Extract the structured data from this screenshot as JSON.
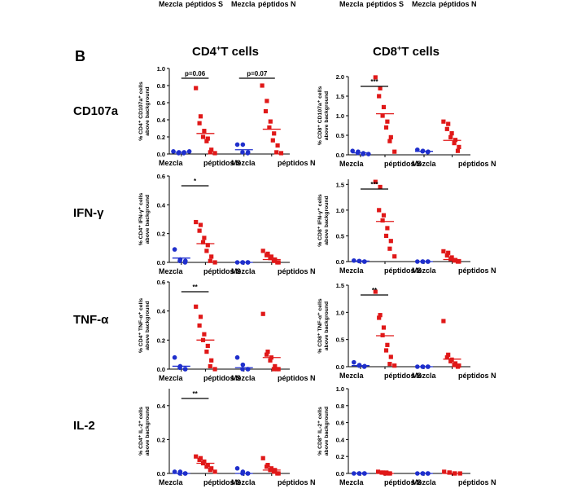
{
  "top_remnant": {
    "left": [
      "Mezcla",
      "péptidos S",
      "Mezcla",
      "péptidos N"
    ],
    "right": [
      "Mezcla",
      "péptidos S",
      "Mezcla",
      "péptidos N"
    ]
  },
  "panel_label": "B",
  "col_titles": {
    "cd4_main": "CD4",
    "cd4_sup": "+",
    "cd4_rest": "T cells",
    "cd8_main": "CD8",
    "cd8_sup": "+",
    "cd8_rest": "T cells"
  },
  "row_labels": [
    "CD107a",
    "IFN-γ",
    "TNF-α",
    "IL-2"
  ],
  "colors": {
    "blue": "#1f2fcc",
    "red": "#e01818"
  },
  "chart_data": [
    {
      "id": "cd4-cd107a",
      "type": "scatter",
      "ylabel": [
        "% CD4⁺ CD107a⁺ cells",
        "above background"
      ],
      "ylim": [
        0,
        1.0
      ],
      "yticks": [
        "0.0",
        "0.2",
        "0.4",
        "0.6",
        "0.8",
        "1.0"
      ],
      "categories": [
        "Mezcla",
        "péptidos S",
        "Mezcla",
        "péptidos N"
      ],
      "points": [
        {
          "g": 0,
          "c": "blue",
          "s": "circle",
          "v": [
            0.03,
            0.02,
            0.01,
            0.02,
            0.01,
            0.03
          ]
        },
        {
          "g": 1,
          "c": "red",
          "s": "square",
          "v": [
            0.77,
            0.44,
            0.36,
            0.27,
            0.2,
            0.18,
            0.15,
            0.05,
            0.02,
            0.01
          ]
        },
        {
          "g": 2,
          "c": "blue",
          "s": "circle",
          "v": [
            0.11,
            0.11,
            0.02,
            0.02,
            0.01
          ]
        },
        {
          "g": 3,
          "c": "red",
          "s": "square",
          "v": [
            0.8,
            0.62,
            0.5,
            0.38,
            0.31,
            0.24,
            0.16,
            0.1,
            0.02,
            0.01
          ]
        }
      ],
      "means": [
        0.02,
        0.24,
        0.05,
        0.29
      ],
      "sig": {
        "text": "p=0.06",
        "groups": [
          0,
          1
        ]
      },
      "sig2": {
        "text": "p=0.07",
        "groups": [
          2,
          3
        ]
      }
    },
    {
      "id": "cd8-cd107a",
      "type": "scatter",
      "ylabel": [
        "% CD8⁺ CD107a⁺ cells",
        "above background"
      ],
      "ylim": [
        0,
        2.0
      ],
      "yticks": [
        "0.0",
        "0.5",
        "1.0",
        "1.5",
        "2.0"
      ],
      "categories": [
        "Mezcla",
        "péptidos S",
        "Mezcla",
        "péptidos N"
      ],
      "points": [
        {
          "g": 0,
          "c": "blue",
          "s": "circle",
          "v": [
            0.1,
            0.08,
            0.05,
            0.04,
            0.02,
            0.02
          ]
        },
        {
          "g": 1,
          "c": "red",
          "s": "square",
          "v": [
            1.98,
            1.7,
            1.5,
            1.22,
            1.0,
            0.85,
            0.7,
            0.45,
            0.35,
            0.08
          ]
        },
        {
          "g": 2,
          "c": "blue",
          "s": "circle",
          "v": [
            0.13,
            0.1,
            0.09,
            0.08,
            0.07
          ]
        },
        {
          "g": 3,
          "c": "red",
          "s": "square",
          "v": [
            0.85,
            0.79,
            0.66,
            0.55,
            0.45,
            0.38,
            0.3,
            0.2,
            0.1
          ]
        }
      ],
      "means": [
        0.05,
        1.05,
        0.09,
        0.37
      ],
      "sig": {
        "text": "***",
        "groups": [
          0,
          1
        ]
      }
    },
    {
      "id": "cd4-ifng",
      "type": "scatter",
      "ylabel": [
        "% CD4⁺ IFN-γ⁺ cells",
        "above background"
      ],
      "ylim": [
        0,
        0.6
      ],
      "yticks": [
        "0.0",
        "0.2",
        "0.4",
        "0.6"
      ],
      "categories": [
        "Mezcla",
        "péptidos S",
        "Mezcla",
        "péptidos N"
      ],
      "points": [
        {
          "g": 0,
          "c": "blue",
          "s": "circle",
          "v": [
            0.09,
            0.02,
            0.01,
            0.01,
            0.0
          ]
        },
        {
          "g": 1,
          "c": "red",
          "s": "square",
          "v": [
            0.28,
            0.26,
            0.22,
            0.17,
            0.14,
            0.12,
            0.08,
            0.04,
            0.01,
            0.0
          ]
        },
        {
          "g": 2,
          "c": "blue",
          "s": "circle",
          "v": [
            0.0,
            0.0,
            0.0,
            0.0,
            0.0
          ]
        },
        {
          "g": 3,
          "c": "red",
          "s": "square",
          "v": [
            0.08,
            0.06,
            0.05,
            0.04,
            0.03,
            0.02,
            0.01,
            0.0,
            0.0
          ]
        }
      ],
      "means": [
        0.03,
        0.13,
        0.0,
        0.02
      ],
      "sig": {
        "text": "*",
        "groups": [
          0,
          1
        ]
      }
    },
    {
      "id": "cd8-ifng",
      "type": "scatter",
      "ylabel": [
        "% CD8⁺ IFN-γ⁺ cells",
        "above background"
      ],
      "ylim": [
        0,
        1.6
      ],
      "yticks": [
        "0.0",
        "0.5",
        "1.0",
        "1.5"
      ],
      "categories": [
        "Mezcla",
        "péptidos S",
        "Mezcla",
        "péptidos N"
      ],
      "points": [
        {
          "g": 0,
          "c": "blue",
          "s": "circle",
          "v": [
            0.02,
            0.01,
            0.01,
            0.0,
            0.0
          ]
        },
        {
          "g": 1,
          "c": "red",
          "s": "square",
          "v": [
            1.55,
            1.45,
            1.0,
            0.9,
            0.8,
            0.65,
            0.5,
            0.4,
            0.25,
            0.1
          ]
        },
        {
          "g": 2,
          "c": "blue",
          "s": "circle",
          "v": [
            0.0,
            0.0,
            0.0,
            0.0,
            0.0
          ]
        },
        {
          "g": 3,
          "c": "red",
          "s": "square",
          "v": [
            0.2,
            0.17,
            0.12,
            0.08,
            0.05,
            0.03,
            0.02,
            0.0,
            0.0
          ]
        }
      ],
      "means": [
        0.01,
        0.78,
        0.0,
        0.04
      ],
      "sig": {
        "text": "***",
        "groups": [
          0,
          1
        ]
      }
    },
    {
      "id": "cd4-tnfa",
      "type": "scatter",
      "ylabel": [
        "% CD4⁺ TNF-α⁺ cells",
        "above background"
      ],
      "ylim": [
        0,
        0.6
      ],
      "yticks": [
        "0.0",
        "0.2",
        "0.4",
        "0.6"
      ],
      "categories": [
        "Mezcla",
        "péptidos S",
        "Mezcla",
        "péptidos N"
      ],
      "points": [
        {
          "g": 0,
          "c": "blue",
          "s": "circle",
          "v": [
            0.08,
            0.02,
            0.01,
            0.0,
            0.0
          ]
        },
        {
          "g": 1,
          "c": "red",
          "s": "square",
          "v": [
            0.43,
            0.36,
            0.3,
            0.24,
            0.2,
            0.16,
            0.12,
            0.06,
            0.02,
            0.0
          ]
        },
        {
          "g": 2,
          "c": "blue",
          "s": "circle",
          "v": [
            0.08,
            0.03,
            0.0,
            0.0,
            0.0
          ]
        },
        {
          "g": 3,
          "c": "red",
          "s": "square",
          "v": [
            0.38,
            0.12,
            0.1,
            0.08,
            0.06,
            0.02,
            0.0,
            0.0,
            0.0
          ]
        }
      ],
      "means": [
        0.02,
        0.2,
        0.01,
        0.08
      ],
      "sig": {
        "text": "**",
        "groups": [
          0,
          1
        ]
      }
    },
    {
      "id": "cd8-tnfa",
      "type": "scatter",
      "ylabel": [
        "% CD8⁺ TNF-α⁺ cells",
        "above background"
      ],
      "ylim": [
        0,
        1.5
      ],
      "yticks": [
        "0.0",
        "0.5",
        "1.0",
        "1.5"
      ],
      "categories": [
        "Mezcla",
        "péptidos S",
        "Mezcla",
        "péptidos N"
      ],
      "points": [
        {
          "g": 0,
          "c": "blue",
          "s": "circle",
          "v": [
            0.08,
            0.03,
            0.02,
            0.01,
            0.0
          ]
        },
        {
          "g": 1,
          "c": "red",
          "s": "square",
          "v": [
            1.38,
            0.95,
            0.9,
            0.72,
            0.58,
            0.4,
            0.3,
            0.18,
            0.05,
            0.02
          ]
        },
        {
          "g": 2,
          "c": "blue",
          "s": "circle",
          "v": [
            0.0,
            0.0,
            0.0,
            0.0,
            0.0
          ]
        },
        {
          "g": 3,
          "c": "red",
          "s": "square",
          "v": [
            0.84,
            0.22,
            0.17,
            0.13,
            0.1,
            0.06,
            0.03,
            0.02,
            0.0
          ]
        }
      ],
      "means": [
        0.02,
        0.57,
        0.0,
        0.14
      ],
      "sig": {
        "text": "**",
        "groups": [
          0,
          1
        ]
      }
    },
    {
      "id": "cd4-il2",
      "type": "scatter",
      "ylabel": [
        "% CD4⁺ IL-2⁺ cells",
        "above background"
      ],
      "ylim": [
        0,
        0.5
      ],
      "yticks": [
        "0.0",
        "0.2",
        "0.4"
      ],
      "categories": [
        "Mezcla",
        "péptidos S",
        "Mezcla",
        "péptidos N"
      ],
      "points": [
        {
          "g": 0,
          "c": "blue",
          "s": "circle",
          "v": [
            0.01,
            0.01,
            0.0,
            0.0,
            0.0
          ]
        },
        {
          "g": 1,
          "c": "red",
          "s": "square",
          "v": [
            0.1,
            0.09,
            0.08,
            0.07,
            0.06,
            0.05,
            0.04,
            0.03,
            0.02,
            0.01
          ]
        },
        {
          "g": 2,
          "c": "blue",
          "s": "circle",
          "v": [
            0.03,
            0.01,
            0.0,
            0.0,
            0.0
          ]
        },
        {
          "g": 3,
          "c": "red",
          "s": "square",
          "v": [
            0.09,
            0.05,
            0.04,
            0.03,
            0.02,
            0.02,
            0.01,
            0.0,
            0.0
          ]
        }
      ],
      "means": [
        0.0,
        0.06,
        0.0,
        0.02
      ],
      "sig": {
        "text": "**",
        "groups": [
          0,
          1
        ]
      }
    },
    {
      "id": "cd8-il2",
      "type": "scatter",
      "ylabel": [
        "% CD8⁺ IL-2⁺ cells",
        "above background"
      ],
      "ylim": [
        0,
        1.0
      ],
      "yticks": [
        "0.0",
        "0.2",
        "0.4",
        "0.6",
        "0.8",
        "1.0"
      ],
      "categories": [
        "Mezcla",
        "péptidos S",
        "Mezcla",
        "péptidos N"
      ],
      "points": [
        {
          "g": 0,
          "c": "blue",
          "s": "circle",
          "v": [
            0.0,
            0.0,
            0.0,
            0.0,
            0.0
          ]
        },
        {
          "g": 1,
          "c": "red",
          "s": "square",
          "v": [
            0.02,
            0.01,
            0.01,
            0.01,
            0.0,
            0.0,
            0.0
          ]
        },
        {
          "g": 2,
          "c": "blue",
          "s": "circle",
          "v": [
            0.0,
            0.0,
            0.0,
            0.0,
            0.0
          ]
        },
        {
          "g": 3,
          "c": "red",
          "s": "square",
          "v": [
            0.02,
            0.01,
            0.01,
            0.0,
            0.0,
            0.0
          ]
        }
      ],
      "means": [
        0.0,
        0.0,
        0.0,
        0.0
      ]
    }
  ]
}
